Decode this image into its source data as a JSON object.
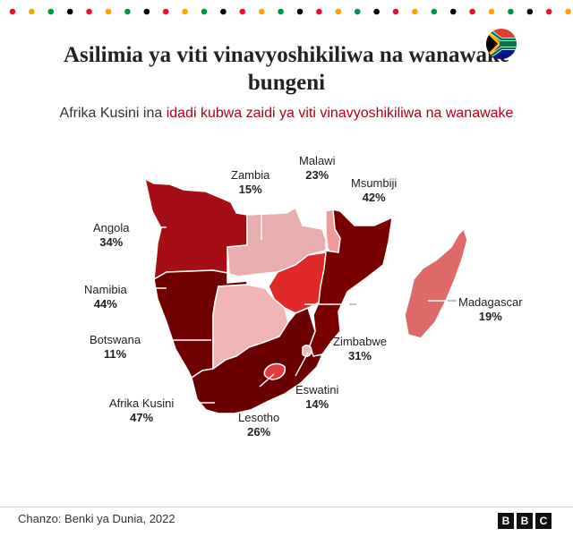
{
  "title": "Asilimia ya viti vinavyoshikiliwa na wanawake bungeni",
  "subtitle": {
    "part1": "Afrika Kusini ina ",
    "highlight": "idadi kubwa zaidi ya viti vinavyoshikiliwa na wanawake"
  },
  "dot_colors": [
    "#e8112d",
    "#f7a600",
    "#009245",
    "#000000"
  ],
  "flag_icon": "south-africa-flag-icon",
  "countries": [
    {
      "name": "Zambia",
      "value": "15%",
      "color": "#e8aeae"
    },
    {
      "name": "Malawi",
      "value": "23%",
      "color": "#ef9999"
    },
    {
      "name": "Msumbiji",
      "value": "42%",
      "color": "#7a0000"
    },
    {
      "name": "Angola",
      "value": "34%",
      "color": "#a40e14"
    },
    {
      "name": "Namibia",
      "value": "44%",
      "color": "#700000"
    },
    {
      "name": "Madagascar",
      "value": "19%",
      "color": "#e06a6a"
    },
    {
      "name": "Botswana",
      "value": "11%",
      "color": "#f0b4b4"
    },
    {
      "name": "Zimbabwe",
      "value": "31%",
      "color": "#e02a2a"
    },
    {
      "name": "Eswatini",
      "value": "14%",
      "color": "#f0b9b9"
    },
    {
      "name": "Afrika Kusini",
      "value": "47%",
      "color": "#6b0000"
    },
    {
      "name": "Lesotho",
      "value": "26%",
      "color": "#e23a3a"
    }
  ],
  "source": "Chanzo: Benki ya Dunia, 2022",
  "logo": [
    "B",
    "B",
    "C"
  ]
}
